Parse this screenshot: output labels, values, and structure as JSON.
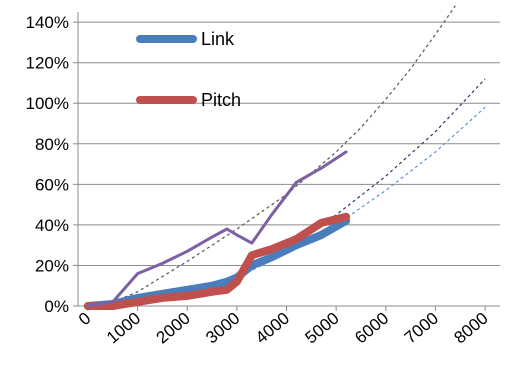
{
  "chart_data": {
    "type": "line",
    "title": "",
    "xlabel": "",
    "ylabel": "",
    "xlim": [
      -200,
      8300
    ],
    "ylim": [
      0,
      1.45
    ],
    "x_ticks": [
      0,
      1000,
      2000,
      3000,
      4000,
      5000,
      6000,
      7000,
      8000
    ],
    "x_tick_labels": [
      "0",
      "1000",
      "2000",
      "3000",
      "4000",
      "5000",
      "6000",
      "7000",
      "8000"
    ],
    "y_ticks": [
      0,
      0.2,
      0.4,
      0.6,
      0.8,
      1.0,
      1.2,
      1.4
    ],
    "y_tick_labels": [
      "0%",
      "20%",
      "40%",
      "60%",
      "80%",
      "100%",
      "120%",
      "140%"
    ],
    "grid": "horizontal",
    "legend_position": "top-left",
    "series": [
      {
        "name": "Link",
        "color": "#4a7ebb",
        "style": "thick-solid",
        "x": [
          0,
          500,
          1000,
          1500,
          2000,
          2500,
          2800,
          3000,
          3300,
          3700,
          4200,
          4700,
          5200
        ],
        "y": [
          0.0,
          0.01,
          0.04,
          0.06,
          0.08,
          0.1,
          0.12,
          0.14,
          0.2,
          0.24,
          0.3,
          0.35,
          0.42
        ]
      },
      {
        "name": "Pitch",
        "color": "#c0504d",
        "style": "thick-solid",
        "x": [
          0,
          500,
          1000,
          1500,
          2000,
          2500,
          2800,
          3000,
          3300,
          3700,
          4200,
          4700,
          5200
        ],
        "y": [
          0.0,
          0.0,
          0.02,
          0.04,
          0.05,
          0.07,
          0.08,
          0.12,
          0.25,
          0.28,
          0.33,
          0.41,
          0.44
        ]
      },
      {
        "name": "",
        "color": "#7d60a0",
        "style": "solid",
        "x": [
          0,
          500,
          1000,
          1500,
          2000,
          2500,
          2800,
          3000,
          3300,
          3700,
          4200,
          4700,
          5200
        ],
        "y": [
          0.0,
          0.02,
          0.16,
          0.21,
          0.27,
          0.34,
          0.38,
          0.35,
          0.31,
          0.45,
          0.61,
          0.68,
          0.76
        ]
      }
    ],
    "trendlines": [
      {
        "color": "#555555",
        "style": "dashed",
        "x": [
          400,
          1000,
          2000,
          3000,
          4000,
          5000,
          5500,
          6000,
          6500,
          7000,
          7400
        ],
        "y": [
          0.01,
          0.07,
          0.22,
          0.38,
          0.55,
          0.76,
          0.88,
          1.02,
          1.17,
          1.34,
          1.48
        ]
      },
      {
        "color": "#1f3a6b",
        "style": "dashed",
        "x": [
          400,
          1000,
          2000,
          3000,
          4000,
          5000,
          6000,
          7000,
          8000
        ],
        "y": [
          0.01,
          0.03,
          0.08,
          0.15,
          0.28,
          0.45,
          0.64,
          0.86,
          1.12
        ]
      },
      {
        "color": "#5b8fd4",
        "style": "dashed",
        "x": [
          400,
          1000,
          2000,
          3000,
          4000,
          5000,
          6000,
          7000,
          8000
        ],
        "y": [
          0.01,
          0.03,
          0.07,
          0.14,
          0.26,
          0.4,
          0.57,
          0.76,
          0.98
        ]
      }
    ]
  }
}
